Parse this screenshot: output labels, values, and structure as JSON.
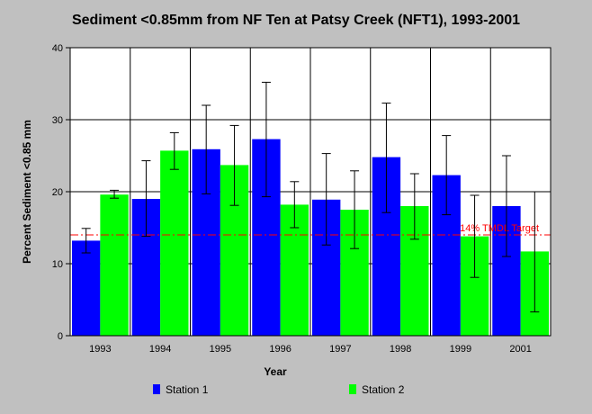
{
  "chart_data": {
    "type": "bar",
    "title": "Sediment <0.85mm from NF Ten at Patsy Creek (NFT1), 1993-2001",
    "xlabel": "Year",
    "ylabel": "Percent Sediment <0.85 mm",
    "ylim": [
      0,
      40
    ],
    "yticks": [
      0,
      10,
      20,
      30,
      40
    ],
    "grid": true,
    "legend_position": "bottom",
    "categories": [
      "1993",
      "1994",
      "1995",
      "1996",
      "1997",
      "1998",
      "1999",
      "2001"
    ],
    "series": [
      {
        "name": "Station 1",
        "color": "#0000ff",
        "values": [
          13.2,
          19.0,
          25.9,
          27.3,
          18.9,
          24.8,
          22.3,
          18.0
        ],
        "error_low": [
          11.5,
          13.8,
          19.7,
          19.3,
          12.6,
          17.1,
          16.8,
          11.0
        ],
        "error_high": [
          14.9,
          24.3,
          32.0,
          35.2,
          25.3,
          32.3,
          27.8,
          25.0
        ]
      },
      {
        "name": "Station 2",
        "color": "#00ff00",
        "values": [
          19.6,
          25.7,
          23.7,
          18.2,
          17.5,
          18.0,
          13.8,
          11.7
        ],
        "error_low": [
          19.1,
          23.1,
          18.1,
          15.0,
          12.1,
          13.4,
          8.1,
          3.3
        ],
        "error_high": [
          20.2,
          28.2,
          29.2,
          21.4,
          22.9,
          22.5,
          19.5,
          20.0
        ]
      }
    ],
    "reference_line": {
      "value": 14,
      "label": "14% TMDL Target",
      "color": "#ff0000"
    }
  }
}
